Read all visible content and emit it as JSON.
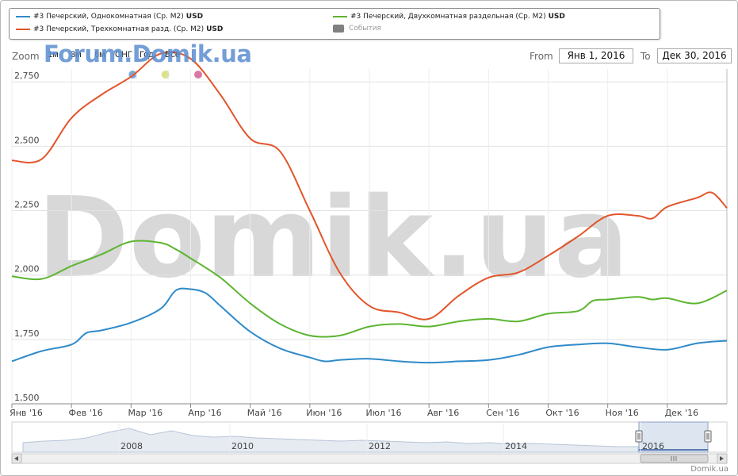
{
  "legend": {
    "series1_label": "#3 Печерский, Однокомнатная (Ср. M2)",
    "series2_label": "#3 Печерский, Двухкомнатная раздельная (Ср. M2)",
    "series3_label": "#3 Печерский, Трехкомнатная разд. (Ср. M2)",
    "unit": "USD",
    "events_label": "События"
  },
  "toolbar": {
    "zoom_label": "Zoom",
    "zoom_buttons": [
      "1м",
      "3м",
      "6м",
      "СНГ",
      "Год",
      "Всё"
    ],
    "from_label": "From",
    "from_value": "Янв 1, 2016",
    "to_label": "To",
    "to_value": "Дек 30, 2016"
  },
  "watermark": {
    "small": "Forum.Domik.ua",
    "large": "Domik.ua"
  },
  "credits": "Domik.ua",
  "colors": {
    "series1": "#2f8ac9",
    "series2": "#5cb531",
    "series3": "#e2552a",
    "events": "#808080",
    "marker1": "#7aa7d9",
    "marker2": "#dde28a",
    "marker3": "#d978a3"
  },
  "chart_data": {
    "type": "line",
    "x_axis": "months",
    "x_labels": [
      "Янв '16",
      "Фев '16",
      "Мар '16",
      "Апр '16",
      "Май '16",
      "Июн '16",
      "Июл '16",
      "Авг '16",
      "Сен '16",
      "Окт '16",
      "Ноя '16",
      "Дек '16"
    ],
    "y_ticks": [
      "1,500",
      "1,750",
      "2,000",
      "2,250",
      "2,500",
      "2,750"
    ],
    "ylim": [
      1500,
      2800
    ],
    "grid": true,
    "legend_position": "top",
    "series": [
      {
        "name": "#3 Печерский, Однокомнатная (Ср. M2)",
        "color": "#2f8ac9",
        "points": [
          [
            0,
            1665
          ],
          [
            0.5,
            1705
          ],
          [
            1,
            1730
          ],
          [
            1.25,
            1775
          ],
          [
            1.5,
            1785
          ],
          [
            2,
            1815
          ],
          [
            2.5,
            1870
          ],
          [
            2.75,
            1940
          ],
          [
            3,
            1945
          ],
          [
            3.25,
            1930
          ],
          [
            3.5,
            1880
          ],
          [
            4,
            1780
          ],
          [
            4.5,
            1715
          ],
          [
            5,
            1680
          ],
          [
            5.25,
            1665
          ],
          [
            5.5,
            1670
          ],
          [
            6,
            1675
          ],
          [
            6.5,
            1665
          ],
          [
            7,
            1660
          ],
          [
            7.5,
            1665
          ],
          [
            8,
            1670
          ],
          [
            8.5,
            1690
          ],
          [
            9,
            1720
          ],
          [
            9.5,
            1730
          ],
          [
            10,
            1735
          ],
          [
            10.5,
            1720
          ],
          [
            11,
            1710
          ],
          [
            11.5,
            1735
          ],
          [
            12,
            1745
          ]
        ]
      },
      {
        "name": "#3 Печерский, Двухкомнатная раздельная (Ср. M2)",
        "color": "#5cb531",
        "points": [
          [
            0,
            1995
          ],
          [
            0.5,
            1985
          ],
          [
            1,
            2035
          ],
          [
            1.5,
            2080
          ],
          [
            2,
            2130
          ],
          [
            2.5,
            2125
          ],
          [
            2.75,
            2100
          ],
          [
            3,
            2065
          ],
          [
            3.5,
            1990
          ],
          [
            4,
            1890
          ],
          [
            4.5,
            1810
          ],
          [
            5,
            1765
          ],
          [
            5.5,
            1765
          ],
          [
            6,
            1800
          ],
          [
            6.5,
            1810
          ],
          [
            7,
            1800
          ],
          [
            7.5,
            1820
          ],
          [
            8,
            1830
          ],
          [
            8.5,
            1820
          ],
          [
            9,
            1850
          ],
          [
            9.5,
            1860
          ],
          [
            9.75,
            1900
          ],
          [
            10,
            1905
          ],
          [
            10.5,
            1915
          ],
          [
            10.75,
            1905
          ],
          [
            11,
            1910
          ],
          [
            11.5,
            1890
          ],
          [
            12,
            1940
          ]
        ]
      },
      {
        "name": "#3 Печерский, Трехкомнатная разд. (Ср. M2)",
        "color": "#e2552a",
        "points": [
          [
            0,
            2445
          ],
          [
            0.5,
            2450
          ],
          [
            1,
            2610
          ],
          [
            1.5,
            2700
          ],
          [
            2,
            2770
          ],
          [
            2.5,
            2860
          ],
          [
            3,
            2840
          ],
          [
            3.5,
            2700
          ],
          [
            4,
            2530
          ],
          [
            4.5,
            2480
          ],
          [
            5,
            2250
          ],
          [
            5.5,
            2010
          ],
          [
            6,
            1880
          ],
          [
            6.5,
            1855
          ],
          [
            7,
            1830
          ],
          [
            7.5,
            1920
          ],
          [
            8,
            1990
          ],
          [
            8.5,
            2010
          ],
          [
            9,
            2075
          ],
          [
            9.5,
            2150
          ],
          [
            10,
            2230
          ],
          [
            10.5,
            2230
          ],
          [
            10.75,
            2220
          ],
          [
            11,
            2265
          ],
          [
            11.5,
            2300
          ],
          [
            11.75,
            2320
          ],
          [
            12,
            2260
          ]
        ]
      }
    ],
    "navigator": {
      "x_labels": [
        "2008",
        "2010",
        "2012",
        "2014",
        "2016"
      ]
    }
  }
}
